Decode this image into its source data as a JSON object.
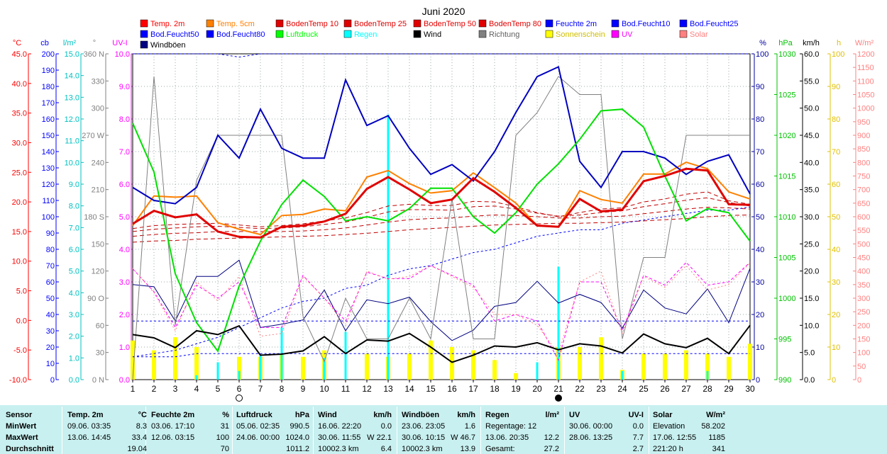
{
  "chart_data": {
    "type": "line",
    "title": "Juni 2020",
    "x": [
      1,
      2,
      3,
      4,
      5,
      6,
      7,
      8,
      9,
      10,
      11,
      12,
      13,
      14,
      15,
      16,
      17,
      18,
      19,
      20,
      21,
      22,
      23,
      24,
      25,
      26,
      27,
      28,
      29,
      30
    ],
    "xlim": [
      1,
      30
    ],
    "moon_markers": [
      {
        "day": 6,
        "phase": "full"
      },
      {
        "day": 21,
        "phase": "new"
      }
    ],
    "axes": {
      "temp_C": {
        "label": "°C",
        "ylim": [
          -10,
          45
        ],
        "ticks": [
          "-10.0",
          "-5.0",
          "0.0",
          "5.0",
          "10.0",
          "15.0",
          "20.0",
          "25.0",
          "30.0",
          "35.0",
          "40.0",
          "45.0"
        ],
        "color": "#ff0000"
      },
      "cb": {
        "label": "cb",
        "ylim": [
          0,
          200
        ],
        "ticks": [
          "0",
          "10",
          "20",
          "30",
          "40",
          "50",
          "60",
          "70",
          "80",
          "90",
          "100",
          "110",
          "120",
          "130",
          "140",
          "150",
          "160",
          "170",
          "180",
          "190",
          "200"
        ],
        "color": "#0000ff"
      },
      "rain_lm2": {
        "label": "l/m²",
        "ylim": [
          0,
          15
        ],
        "ticks": [
          "0.0",
          "1.0",
          "2.0",
          "3.0",
          "4.0",
          "5.0",
          "6.0",
          "7.0",
          "8.0",
          "9.0",
          "10.0",
          "11.0",
          "12.0",
          "13.0",
          "14.0",
          "15.0"
        ],
        "color": "#00c0c0"
      },
      "direction": {
        "label": "°",
        "ylim": [
          0,
          360
        ],
        "ticks": [
          "0 N",
          "30",
          "60",
          "90 O",
          "120",
          "150",
          "180 S",
          "210",
          "240",
          "270 W",
          "300",
          "330",
          "360 N"
        ],
        "color": "#808080"
      },
      "uv": {
        "label": "UV-I",
        "ylim": [
          0,
          10
        ],
        "ticks": [
          "0.0",
          "1.0",
          "2.0",
          "3.0",
          "4.0",
          "5.0",
          "6.0",
          "7.0",
          "8.0",
          "9.0",
          "10.0"
        ],
        "color": "#ff00ff"
      },
      "humidity": {
        "label": "%",
        "ylim": [
          0,
          100
        ],
        "ticks": [
          "0",
          "10",
          "20",
          "30",
          "40",
          "50",
          "60",
          "70",
          "80",
          "90",
          "100"
        ],
        "color": "#0000a0"
      },
      "pressure": {
        "label": "hPa",
        "ylim": [
          990,
          1030
        ],
        "ticks": [
          "990",
          "995",
          "1000",
          "1005",
          "1010",
          "1015",
          "1020",
          "1025",
          "1030"
        ],
        "color": "#00c000"
      },
      "wind": {
        "label": "km/h",
        "ylim": [
          0,
          60
        ],
        "ticks": [
          "0.0",
          "5.0",
          "10.0",
          "15.0",
          "20.0",
          "25.0",
          "30.0",
          "35.0",
          "40.0",
          "45.0",
          "50.0",
          "55.0",
          "60.0"
        ],
        "color": "#000000"
      },
      "sunshine": {
        "label": "h",
        "ylim": [
          0,
          100
        ],
        "ticks": [
          "0",
          "10",
          "20",
          "30",
          "40",
          "50",
          "60",
          "70",
          "80",
          "90",
          "100"
        ],
        "color": "#e0c000"
      },
      "solar": {
        "label": "W/m²",
        "ylim": [
          0,
          1200
        ],
        "ticks": [
          "0",
          "50",
          "100",
          "150",
          "200",
          "250",
          "300",
          "350",
          "400",
          "450",
          "500",
          "550",
          "600",
          "650",
          "700",
          "750",
          "800",
          "850",
          "900",
          "950",
          "1000",
          "1050",
          "1100",
          "1150",
          "1200"
        ],
        "color": "#ff8080"
      }
    },
    "legend": [
      {
        "name": "Temp. 2m",
        "color": "#ff0000"
      },
      {
        "name": "Temp. 5cm",
        "color": "#ff8000"
      },
      {
        "name": "BodenTemp 10",
        "color": "#e00000"
      },
      {
        "name": "BodenTemp 25",
        "color": "#e00000"
      },
      {
        "name": "BodenTemp 50",
        "color": "#e00000"
      },
      {
        "name": "BodenTemp 80",
        "color": "#e00000"
      },
      {
        "name": "Feuchte 2m",
        "color": "#0000ff"
      },
      {
        "name": "Bod.Feucht10",
        "color": "#0000ff"
      },
      {
        "name": "Bod.Feucht25",
        "color": "#0000ff"
      },
      {
        "name": "Bod.Feucht50",
        "color": "#0000ff"
      },
      {
        "name": "Bod.Feucht80",
        "color": "#0000ff"
      },
      {
        "name": "Luftdruck",
        "color": "#00ff00"
      },
      {
        "name": "Regen",
        "color": "#00ffff"
      },
      {
        "name": "Wind",
        "color": "#000000"
      },
      {
        "name": "Richtung",
        "color": "#808080"
      },
      {
        "name": "Sonnenschein",
        "color": "#ffff00"
      },
      {
        "name": "UV",
        "color": "#ff00ff"
      },
      {
        "name": "Solar",
        "color": "#ff8080"
      },
      {
        "name": "Windböen",
        "color": "#000080"
      }
    ],
    "series": [
      {
        "name": "Temp. 2m",
        "axis": "temp_C",
        "color": "#e00000",
        "width": 3,
        "values": [
          16.3,
          18.5,
          17.4,
          17.9,
          15.0,
          14.1,
          14.0,
          15.8,
          16.0,
          16.7,
          18.0,
          22.2,
          24.2,
          22.1,
          19.8,
          20.4,
          24.0,
          21.7,
          19.0,
          16.0,
          15.8,
          20.5,
          18.4,
          18.7,
          23.5,
          24.4,
          25.6,
          25.3,
          19.6,
          19.5
        ]
      },
      {
        "name": "Temp. 5cm",
        "axis": "temp_C",
        "color": "#ff8000",
        "width": 2,
        "values": [
          16.0,
          21.0,
          20.8,
          21.0,
          16.5,
          15.4,
          14.5,
          17.7,
          17.9,
          18.8,
          18.5,
          24.2,
          25.3,
          23.1,
          21.5,
          21.9,
          24.9,
          22.4,
          19.8,
          16.0,
          15.8,
          21.9,
          20.4,
          19.8,
          24.7,
          24.7,
          26.7,
          25.6,
          21.7,
          20.5
        ]
      },
      {
        "name": "BodenTemp 10",
        "axis": "temp_C",
        "color": "#c00000",
        "dash": "6,4",
        "width": 1,
        "values": [
          15.5,
          16.0,
          16.2,
          16.3,
          16.4,
          16.1,
          15.8,
          16.0,
          16.3,
          16.8,
          17.3,
          18.2,
          19.3,
          19.6,
          19.4,
          19.4,
          20.1,
          20.0,
          19.2,
          18.2,
          17.5,
          18.2,
          18.8,
          19.0,
          20.0,
          20.5,
          21.3,
          21.7,
          20.2,
          19.6
        ]
      },
      {
        "name": "BodenTemp 25",
        "axis": "temp_C",
        "color": "#c00000",
        "dash": "6,4",
        "width": 1,
        "values": [
          15.0,
          15.4,
          15.6,
          15.8,
          15.9,
          15.7,
          15.5,
          15.6,
          15.8,
          16.2,
          16.6,
          17.4,
          18.3,
          18.7,
          18.7,
          18.6,
          19.2,
          19.3,
          18.8,
          18.1,
          17.6,
          17.8,
          18.2,
          18.5,
          19.2,
          19.7,
          20.3,
          20.7,
          19.9,
          19.3
        ]
      },
      {
        "name": "BodenTemp 50",
        "axis": "temp_C",
        "color": "#c00000",
        "dash": "6,4",
        "width": 1,
        "values": [
          14.2,
          14.5,
          14.7,
          14.8,
          15.0,
          15.0,
          15.0,
          15.0,
          15.1,
          15.3,
          15.6,
          16.1,
          16.6,
          17.0,
          17.2,
          17.3,
          17.6,
          17.8,
          17.7,
          17.5,
          17.3,
          17.3,
          17.5,
          17.6,
          18.0,
          18.4,
          18.8,
          19.1,
          19.0,
          18.8
        ]
      },
      {
        "name": "BodenTemp 80",
        "axis": "temp_C",
        "color": "#c00000",
        "dash": "6,4",
        "width": 1,
        "values": [
          13.2,
          13.4,
          13.5,
          13.7,
          13.8,
          13.9,
          14.0,
          14.1,
          14.2,
          14.3,
          14.5,
          14.7,
          15.0,
          15.3,
          15.5,
          15.7,
          15.9,
          16.1,
          16.2,
          16.3,
          16.4,
          16.4,
          16.5,
          16.6,
          16.8,
          17.0,
          17.2,
          17.5,
          17.7,
          17.8
        ]
      },
      {
        "name": "Feuchte 2m",
        "axis": "humidity",
        "color": "#0000c0",
        "width": 2,
        "values": [
          59,
          55,
          54,
          59,
          75,
          68,
          83,
          71,
          68,
          68,
          92,
          78,
          81,
          71,
          63,
          66,
          61,
          70,
          82,
          93,
          96,
          67,
          59,
          70,
          70,
          68,
          63,
          67,
          69,
          57
        ]
      },
      {
        "name": "Bod.Feucht10",
        "axis": "humidity",
        "color": "#0000ff",
        "dash": "3,3",
        "width": 1,
        "values": [
          7,
          8,
          9,
          11,
          13,
          16,
          19,
          22,
          24,
          25,
          28,
          29,
          32,
          34,
          35,
          37,
          39,
          40,
          42,
          44,
          45,
          46,
          46,
          48,
          49,
          50,
          51,
          52,
          52,
          53
        ]
      },
      {
        "name": "Bod.Feucht25",
        "axis": "humidity",
        "color": "#0000ff",
        "dash": "3,3",
        "width": 1,
        "values": [
          100,
          100,
          100,
          100,
          100,
          99,
          100,
          100,
          100,
          100,
          100,
          100,
          100,
          100,
          100,
          100,
          100,
          100,
          100,
          100,
          100,
          100,
          100,
          100,
          100,
          100,
          100,
          100,
          100,
          100
        ]
      },
      {
        "name": "Bod.Feucht50",
        "axis": "humidity",
        "color": "#0000ff",
        "dash": "3,3",
        "width": 1,
        "values": [
          18,
          18,
          18,
          18,
          18,
          18,
          18,
          18,
          18,
          18,
          18,
          18,
          18,
          18,
          18,
          18,
          18,
          18,
          18,
          18,
          18,
          18,
          18,
          18,
          18,
          18,
          18,
          18,
          18,
          18
        ]
      },
      {
        "name": "Bod.Feucht80",
        "axis": "humidity",
        "color": "#0000ff",
        "dash": "3,3",
        "width": 1,
        "values": [
          7,
          7,
          7,
          8,
          8,
          8,
          8,
          8,
          8,
          8,
          8,
          8,
          8,
          8,
          8,
          8,
          8,
          8,
          8,
          8,
          8,
          8,
          8,
          8,
          8,
          8,
          8,
          8,
          8,
          8
        ]
      },
      {
        "name": "Luftdruck",
        "axis": "pressure",
        "color": "#00e000",
        "width": 2,
        "values": [
          1021.5,
          1015.5,
          1003.0,
          997.0,
          993.5,
          1001.5,
          1007.0,
          1011.5,
          1014.5,
          1012.5,
          1009.5,
          1010.0,
          1009.5,
          1011.0,
          1013.5,
          1013.5,
          1010.0,
          1008.0,
          1010.5,
          1014.0,
          1016.5,
          1019.5,
          1023.0,
          1023.2,
          1021.0,
          1015.0,
          1009.5,
          1011.0,
          1010.5,
          1007.0
        ]
      },
      {
        "name": "Wind",
        "axis": "wind",
        "color": "#000000",
        "width": 2,
        "values": [
          8.3,
          7.7,
          5.9,
          9.0,
          8.3,
          9.9,
          4.5,
          4.7,
          5.3,
          7.9,
          4.8,
          7.3,
          7.1,
          8.5,
          6.0,
          3.2,
          4.5,
          6.2,
          6.0,
          6.8,
          5.5,
          6.6,
          6.2,
          4.9,
          8.4,
          6.6,
          5.9,
          7.6,
          4.8,
          10.0
        ]
      },
      {
        "name": "Windböen",
        "axis": "wind",
        "color": "#000080",
        "width": 1,
        "values": [
          17.5,
          17.1,
          10.8,
          19.0,
          19.0,
          22.0,
          9.6,
          10.2,
          11.0,
          16.5,
          9.0,
          14.7,
          14.0,
          15.2,
          10.7,
          7.2,
          9.1,
          13.5,
          14.2,
          18.1,
          14.1,
          15.7,
          14.2,
          9.5,
          16.5,
          13.2,
          12.1,
          16.7,
          10.5,
          20.5
        ]
      },
      {
        "name": "Richtung",
        "axis": "direction",
        "color": "#808080",
        "width": 1,
        "values": [
          0,
          335,
          60,
          220,
          270,
          270,
          270,
          270,
          70,
          20,
          90,
          45,
          45,
          90,
          45,
          200,
          45,
          45,
          270,
          295,
          335,
          315,
          315,
          45,
          135,
          135,
          270,
          270,
          270,
          270
        ]
      },
      {
        "name": "UV",
        "axis": "uv",
        "color": "#ff00ff",
        "dash": "4,3",
        "width": 1,
        "values": [
          3.4,
          2.7,
          1.6,
          2.9,
          2.5,
          3.0,
          1.6,
          1.6,
          3.2,
          2.5,
          1.8,
          3.3,
          3.1,
          3.1,
          3.5,
          3.2,
          2.9,
          1.8,
          2.0,
          1.8,
          0.6,
          3.0,
          3.0,
          1.5,
          3.2,
          2.9,
          3.6,
          2.9,
          3.0,
          3.6
        ]
      },
      {
        "name": "Solar",
        "axis": "solar",
        "color": "#ff8080",
        "dash": "2,3",
        "width": 1,
        "values": [
          410,
          320,
          180,
          360,
          290,
          380,
          160,
          170,
          380,
          300,
          200,
          400,
          370,
          380,
          420,
          380,
          340,
          240,
          240,
          200,
          95,
          360,
          400,
          170,
          380,
          340,
          420,
          330,
          350,
          430
        ]
      }
    ],
    "bars": [
      {
        "name": "Sonnenschein",
        "axis": "sunshine",
        "color": "#ffff00",
        "values": [
          12,
          9,
          13,
          10,
          0,
          7,
          7,
          8,
          7,
          9,
          0,
          8,
          7,
          8,
          12,
          10,
          9,
          6,
          2,
          0,
          10,
          10,
          13,
          3,
          8,
          8,
          9,
          8,
          7,
          11
        ]
      },
      {
        "name": "Regen",
        "axis": "rain_lm2",
        "color": "#00ffff",
        "values": [
          0.0,
          0.0,
          0.0,
          0.2,
          0.8,
          0.4,
          1.1,
          2.4,
          0.0,
          1.0,
          2.2,
          0.0,
          12.2,
          0.0,
          0.0,
          0.0,
          0.0,
          0.0,
          0.0,
          0.8,
          5.2,
          0.0,
          0.0,
          0.4,
          0.0,
          0.0,
          0.0,
          0.4,
          0.0,
          0.0
        ]
      }
    ],
    "grid": true
  },
  "stats": {
    "header": {
      "sensor": "Sensor",
      "temp": "Temp. 2m",
      "temp_unit": "°C",
      "hum": "Feuchte 2m",
      "hum_unit": "%",
      "press": "Luftdruck",
      "press_unit": "hPa",
      "wind": "Wind",
      "wind_unit": "km/h",
      "gust": "Windböen",
      "gust_unit": "km/h",
      "rain": "Regen",
      "rain_unit": "l/m²",
      "uv": "UV",
      "uv_unit": "UV-I",
      "solar": "Solar",
      "solar_unit": "W/m²"
    },
    "rows": [
      {
        "label": "MinWert",
        "temp_time": "09.06.  03:35",
        "temp_val": "8.3",
        "hum_time": "03.06.  17:10",
        "hum_val": "31",
        "press_time": "05.06.  02:35",
        "press_val": "990.5",
        "wind_time": "16.06.  22:20",
        "wind_val": "0.0",
        "gust_time": "23.06.  23:05",
        "gust_val": "1.6",
        "rain_time": "Regentage: 12",
        "rain_val": "",
        "uv_time": "30.06.  00:00",
        "uv_val": "0.0",
        "solar_time": "Elevation",
        "solar_val": "58.202"
      },
      {
        "label": "MaxWert",
        "temp_time": "13.06.  14:45",
        "temp_val": "33.4",
        "hum_time": "12.06.  03:15",
        "hum_val": "100",
        "press_time": "24.06.  00:00",
        "press_val": "1024.0",
        "wind_time": "30.06.  11:55",
        "wind_val": "W 22.1",
        "gust_time": "30.06.  10:15",
        "gust_val": "W 46.7",
        "rain_time": "13.06.  20:35",
        "rain_val": "12.2",
        "uv_time": "28.06.  13:25",
        "uv_val": "7.7",
        "solar_time": "17.06.  12:55",
        "solar_val": "1185"
      },
      {
        "label": "Durchschnitt",
        "temp_time": "",
        "temp_val": "19.04",
        "hum_time": "",
        "hum_val": "70",
        "press_time": "",
        "press_val": "1011.2",
        "wind_time": "10002.3 km",
        "wind_val": "6.4",
        "gust_time": "10002.3 km",
        "gust_val": "13.9",
        "rain_time": "Gesamt:",
        "rain_val": "27.2",
        "uv_time": "",
        "uv_val": "2.7",
        "solar_time": "221:20 h",
        "solar_val": "341"
      }
    ]
  }
}
